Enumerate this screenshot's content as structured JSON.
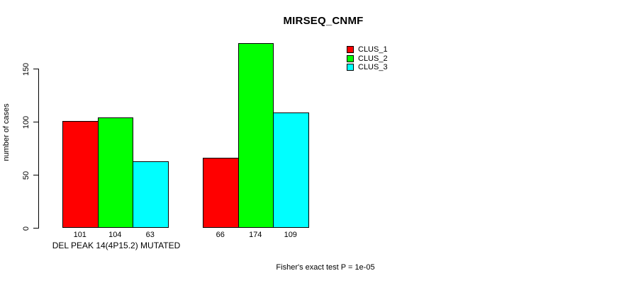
{
  "chart_data": {
    "type": "bar",
    "title": "MIRSEQ_CNMF",
    "ylabel": "number of cases",
    "xlabel": "",
    "yticks": [
      0,
      50,
      100,
      150
    ],
    "ylim": [
      0,
      180
    ],
    "grid": false,
    "legend_position": "top-right",
    "categories": [
      "DEL PEAK 14(4P15.2) MUTATED",
      ""
    ],
    "series": [
      {
        "name": "CLUS_1",
        "color": "#ff0000",
        "values": [
          101,
          66
        ]
      },
      {
        "name": "CLUS_2",
        "color": "#00ff00",
        "values": [
          104,
          174
        ]
      },
      {
        "name": "CLUS_3",
        "color": "#00ffff",
        "values": [
          63,
          109
        ]
      }
    ],
    "bar_value_labels": [
      [
        101,
        104,
        63
      ],
      [
        66,
        174,
        109
      ]
    ],
    "annotation": "Fisher's exact test P = 1e-05"
  }
}
